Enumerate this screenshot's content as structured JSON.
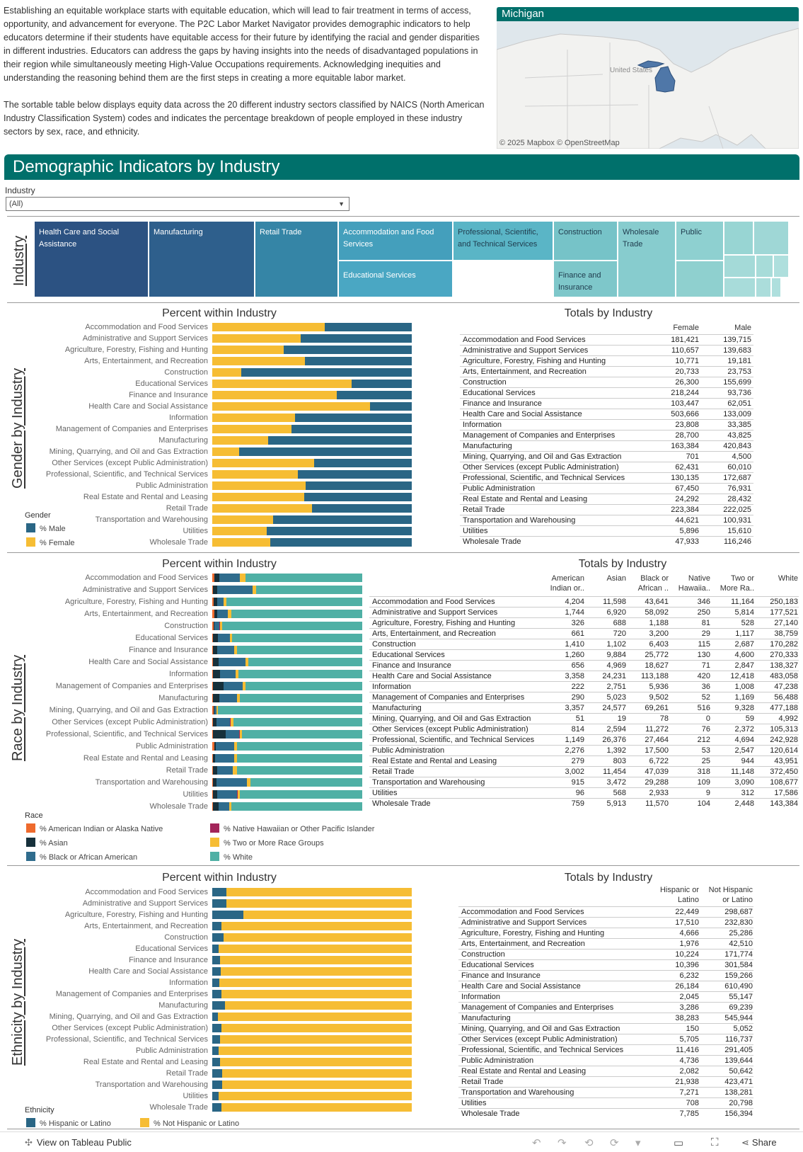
{
  "intro": {
    "p1": "Establishing an equitable workplace starts with equitable education, which will lead to fair treatment in terms of access, opportunity, and advancement for everyone. The P2C Labor Market Navigator provides demographic indicators to help educators determine if their students have equitable access for their future by identifying the racial and gender disparities in different industries. Educators can address the gaps by having insights into the needs of disadvantaged populations in their region while simultaneously meeting High-Value Occupations requirements. Acknowledging inequities and understanding the reasoning behind them are the first steps in creating a more equitable labor market.",
    "p2": "The sortable table below displays equity data across the 20 different industry sectors classified by NAICS (North American Industry Classification System) codes and indicates the percentage breakdown of people employed in these industry sectors by sex, race, and ethnicity."
  },
  "map": {
    "title": "Michigan",
    "country_label": "United States",
    "attribution": "© 2025 Mapbox  © OpenStreetMap"
  },
  "banner": {
    "title": "Demographic Indicators by Industry"
  },
  "filter": {
    "label": "Industry",
    "value": "(All)"
  },
  "treemap": {
    "axis_label": "Industry",
    "cells": [
      {
        "label": "Health Care and Social Assistance",
        "color": "#2c5282"
      },
      {
        "label": "Manufacturing",
        "color": "#2e5f8c"
      },
      {
        "label": "Retail Trade",
        "color": "#3585a6"
      },
      {
        "label": "Accommodation and Food Services",
        "color": "#449fbc"
      },
      {
        "label": "Educational Services",
        "color": "#4aa7c3"
      },
      {
        "label": "Professional, Scientific, and Technical Services",
        "color": "#5ab5c6"
      },
      {
        "label": "Construction",
        "color": "#76c3c8"
      },
      {
        "label": "Finance and Insurance",
        "color": "#7ec7ca"
      },
      {
        "label": "Wholesale Trade",
        "color": "#87ccce"
      },
      {
        "label": "Public",
        "color": "#8ed0d0"
      }
    ]
  },
  "industries": [
    "Accommodation and Food Services",
    "Administrative and Support Services",
    "Agriculture, Forestry, Fishing and Hunting",
    "Arts, Entertainment, and Recreation",
    "Construction",
    "Educational Services",
    "Finance and Insurance",
    "Health Care and Social Assistance",
    "Information",
    "Management of Companies and Enterprises",
    "Manufacturing",
    "Mining, Quarrying, and Oil and Gas Extraction",
    "Other Services (except Public Administration)",
    "Professional, Scientific, and Technical Services",
    "Public Administration",
    "Real Estate and Rental and Leasing",
    "Retail Trade",
    "Transportation and Warehousing",
    "Utilities",
    "Wholesale Trade"
  ],
  "gender": {
    "axis_label": "Gender by Industry",
    "chart_title": "Percent within Industry",
    "table_title": "Totals by Industry",
    "columns": [
      "Female",
      "Male"
    ],
    "female": [
      181421,
      110657,
      10771,
      20733,
      26300,
      218244,
      103447,
      503666,
      23808,
      28700,
      163384,
      701,
      62431,
      130135,
      67450,
      24292,
      223384,
      44621,
      5896,
      47933
    ],
    "male": [
      139715,
      139683,
      19181,
      23753,
      155699,
      93736,
      62051,
      133009,
      33385,
      43825,
      420843,
      4500,
      60010,
      172687,
      76931,
      28432,
      222025,
      100931,
      15610,
      116246
    ],
    "female_display": [
      "181,421",
      "110,657",
      "10,771",
      "20,733",
      "26,300",
      "218,244",
      "103,447",
      "503,666",
      "23,808",
      "28,700",
      "163,384",
      "701",
      "62,431",
      "130,135",
      "67,450",
      "24,292",
      "223,384",
      "44,621",
      "5,896",
      "47,933"
    ],
    "male_display": [
      "139,715",
      "139,683",
      "19,181",
      "23,753",
      "155,699",
      "93,736",
      "62,051",
      "133,009",
      "33,385",
      "43,825",
      "420,843",
      "4,500",
      "60,010",
      "172,687",
      "76,931",
      "28,432",
      "222,025",
      "100,931",
      "15,610",
      "116,246"
    ],
    "legend": {
      "title": "Gender",
      "items": [
        {
          "label": "% Male",
          "color": "#2a6685"
        },
        {
          "label": "% Female",
          "color": "#f6bd34"
        }
      ]
    }
  },
  "race": {
    "axis_label": "Race by Industry",
    "chart_title": "Percent within Industry",
    "table_title": "Totals by Industry",
    "columns": [
      "American Indian or..",
      "Asian",
      "Black or African ..",
      "Native Hawaiia..",
      "Two or More Ra..",
      "White"
    ],
    "column_keys": [
      "american_indian",
      "asian",
      "black",
      "native_hawaiian",
      "two_or_more",
      "white"
    ],
    "american_indian": [
      4204,
      1744,
      326,
      661,
      1410,
      1260,
      656,
      3358,
      222,
      290,
      3357,
      51,
      814,
      1149,
      2276,
      279,
      3002,
      915,
      96,
      759
    ],
    "asian": [
      11598,
      6920,
      688,
      720,
      1102,
      9884,
      4969,
      24231,
      2751,
      5023,
      24577,
      19,
      2594,
      26376,
      1392,
      803,
      11454,
      3472,
      568,
      5913
    ],
    "black": [
      43641,
      58092,
      1188,
      3200,
      6403,
      25772,
      18627,
      113188,
      5936,
      9502,
      69261,
      78,
      11272,
      27464,
      17500,
      6722,
      47039,
      29288,
      2933,
      11570
    ],
    "native_hawaiian": [
      346,
      250,
      81,
      29,
      115,
      130,
      71,
      420,
      36,
      52,
      516,
      0,
      76,
      212,
      53,
      25,
      318,
      109,
      9,
      104
    ],
    "two_or_more": [
      11164,
      5814,
      528,
      1117,
      2687,
      4600,
      2847,
      12418,
      1008,
      1169,
      9328,
      59,
      2372,
      4694,
      2547,
      944,
      11148,
      3090,
      312,
      2448
    ],
    "white": [
      250183,
      177521,
      27140,
      38759,
      170282,
      270333,
      138327,
      483058,
      47238,
      56488,
      477188,
      4992,
      105313,
      242928,
      120614,
      43951,
      372450,
      108677,
      17586,
      143384
    ],
    "american_indian_display": [
      "4,204",
      "1,744",
      "326",
      "661",
      "1,410",
      "1,260",
      "656",
      "3,358",
      "222",
      "290",
      "3,357",
      "51",
      "814",
      "1,149",
      "2,276",
      "279",
      "3,002",
      "915",
      "96",
      "759"
    ],
    "asian_display": [
      "11,598",
      "6,920",
      "688",
      "720",
      "1,102",
      "9,884",
      "4,969",
      "24,231",
      "2,751",
      "5,023",
      "24,577",
      "19",
      "2,594",
      "26,376",
      "1,392",
      "803",
      "11,454",
      "3,472",
      "568",
      "5,913"
    ],
    "black_display": [
      "43,641",
      "58,092",
      "1,188",
      "3,200",
      "6,403",
      "25,772",
      "18,627",
      "113,188",
      "5,936",
      "9,502",
      "69,261",
      "78",
      "11,272",
      "27,464",
      "17,500",
      "6,722",
      "47,039",
      "29,288",
      "2,933",
      "11,570"
    ],
    "native_hawaiian_display": [
      "346",
      "250",
      "81",
      "29",
      "115",
      "130",
      "71",
      "420",
      "36",
      "52",
      "516",
      "0",
      "76",
      "212",
      "53",
      "25",
      "318",
      "109",
      "9",
      "104"
    ],
    "two_or_more_display": [
      "11,164",
      "5,814",
      "528",
      "1,117",
      "2,687",
      "4,600",
      "2,847",
      "12,418",
      "1,008",
      "1,169",
      "9,328",
      "59",
      "2,372",
      "4,694",
      "2,547",
      "944",
      "11,148",
      "3,090",
      "312",
      "2,448"
    ],
    "white_display": [
      "250,183",
      "177,521",
      "27,140",
      "38,759",
      "170,282",
      "270,333",
      "138,327",
      "483,058",
      "47,238",
      "56,488",
      "477,188",
      "4,992",
      "105,313",
      "242,928",
      "120,614",
      "43,951",
      "372,450",
      "108,677",
      "17,586",
      "143,384"
    ],
    "legend": {
      "title": "Race",
      "items": [
        {
          "label": "% American Indian or Alaska Native",
          "color": "#ee6a2d"
        },
        {
          "label": "% Asian",
          "color": "#16303b"
        },
        {
          "label": "% Black or African American",
          "color": "#2f6c8d"
        },
        {
          "label": "% Native Hawaiian or Other Pacific Islander",
          "color": "#a3255a"
        },
        {
          "label": "% Two or More Race Groups",
          "color": "#f6bd34"
        },
        {
          "label": "% White",
          "color": "#4fb0a5"
        }
      ]
    }
  },
  "ethnicity": {
    "axis_label": "Ethnicity by Industry",
    "chart_title": "Percent within Industry",
    "table_title": "Totals by Industry",
    "columns": [
      "Hispanic or Latino",
      "Not Hispanic or Latino"
    ],
    "hispanic": [
      22449,
      17510,
      4666,
      1976,
      10224,
      10396,
      6232,
      26184,
      2045,
      3286,
      38283,
      150,
      5705,
      11416,
      4736,
      2082,
      21938,
      7271,
      708,
      7785
    ],
    "not_hispanic": [
      298687,
      232830,
      25286,
      42510,
      171774,
      301584,
      159266,
      610490,
      55147,
      69239,
      545944,
      5052,
      116737,
      291405,
      139644,
      50642,
      423471,
      138281,
      20798,
      156394
    ],
    "hispanic_display": [
      "22,449",
      "17,510",
      "4,666",
      "1,976",
      "10,224",
      "10,396",
      "6,232",
      "26,184",
      "2,045",
      "3,286",
      "38,283",
      "150",
      "5,705",
      "11,416",
      "4,736",
      "2,082",
      "21,938",
      "7,271",
      "708",
      "7,785"
    ],
    "not_hispanic_display": [
      "298,687",
      "232,830",
      "25,286",
      "42,510",
      "171,774",
      "301,584",
      "159,266",
      "610,490",
      "55,147",
      "69,239",
      "545,944",
      "5,052",
      "116,737",
      "291,405",
      "139,644",
      "50,642",
      "423,471",
      "138,281",
      "20,798",
      "156,394"
    ],
    "legend": {
      "title": "Ethnicity",
      "items": [
        {
          "label": "% Hispanic or Latino",
          "color": "#2a6685"
        },
        {
          "label": "% Not Hispanic or Latino",
          "color": "#f6bd34"
        }
      ]
    }
  },
  "footer": {
    "brand": "View on Tableau Public",
    "share": "Share"
  }
}
